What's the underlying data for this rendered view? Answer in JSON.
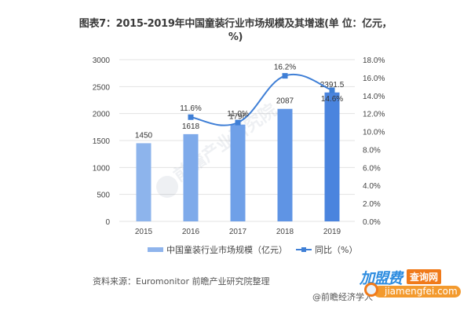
{
  "title": "图表7：2015-2019年中国童装行业市场规模及其增速(单 位：亿元，%)",
  "chart_data": {
    "type": "bar",
    "title": "图表7：2015-2019年中国童装行业市场规模及其增速(单 位：亿元，%)",
    "categories": [
      "2015",
      "2016",
      "2017",
      "2018",
      "2019"
    ],
    "series": [
      {
        "name": "中国童装行业市场规模（亿元）",
        "type": "bar",
        "axis": "left",
        "values": [
          1450,
          1618,
          1796,
          2087,
          2391.5
        ],
        "labels": [
          "1450",
          "1618",
          "1796",
          "2087",
          "2391.5"
        ]
      },
      {
        "name": "同比（%）",
        "type": "line",
        "axis": "right",
        "values": [
          null,
          11.6,
          11.0,
          16.2,
          14.6
        ],
        "labels": [
          "",
          "11.6%",
          "11.0%",
          "16.2%",
          "14.6%"
        ]
      }
    ],
    "left_axis": {
      "min": 0,
      "max": 3000,
      "ticks": [
        "0",
        "500",
        "1000",
        "1500",
        "2000",
        "2500",
        "3000"
      ]
    },
    "right_axis": {
      "min": 0,
      "max": 18,
      "ticks": [
        "0.0%",
        "2.0%",
        "4.0%",
        "6.0%",
        "8.0%",
        "10.0%",
        "12.0%",
        "14.0%",
        "16.0%",
        "18.0%"
      ]
    },
    "grid": true,
    "legend_position": "bottom",
    "xlabel": "",
    "ylabel": ""
  },
  "legend": {
    "bar_label": "中国童装行业市场规模（亿元）",
    "line_label": "同比（%）"
  },
  "source": "资料来源：Euromonitor 前瞻产业研究院整理",
  "credit": "@前瞻经济学人",
  "watermark": {
    "brand_cn": "加盟费",
    "brand_tag": "查询网",
    "brand_url": "jiamengfei.com"
  },
  "colors": {
    "bars": [
      "#8db4ec",
      "#7eaaea",
      "#6fa0e8",
      "#5f94e4",
      "#4a84de"
    ],
    "line": "#3f7fd6",
    "grid": "#e3e3e3"
  }
}
